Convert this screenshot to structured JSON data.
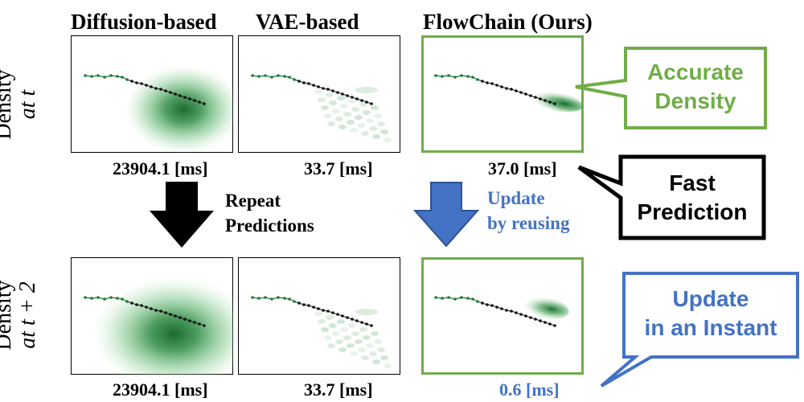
{
  "columns": {
    "diffusion": "Diffusion-based",
    "vae": "VAE-based",
    "flowchain": "FlowChain (Ours)"
  },
  "rows": {
    "top": {
      "line1": "Density",
      "line2": "at t"
    },
    "bottom": {
      "line1": "Density",
      "line2": "at t + 2"
    }
  },
  "timings": {
    "top": {
      "diffusion": "23904.1 [ms]",
      "vae": "33.7 [ms]",
      "flowchain": "37.0 [ms]"
    },
    "bottom": {
      "diffusion": "23904.1 [ms]",
      "vae": "33.7 [ms]",
      "flowchain": "0.6 [ms]"
    }
  },
  "arrows": {
    "black": {
      "line1": "Repeat",
      "line2": "Predictions"
    },
    "blue": {
      "line1": "Update",
      "line2": "by reusing"
    }
  },
  "callouts": {
    "accurate": {
      "line1": "Accurate",
      "line2": "Density"
    },
    "fast": {
      "line1": "Fast",
      "line2": "Prediction"
    },
    "instant": {
      "line1": "Update",
      "line2": "in an Instant"
    }
  },
  "colors": {
    "green_border": "#70ad47",
    "blue_accent": "#4472c4",
    "callout_green_text": "#70ad47",
    "callout_blue_text": "#4472c4",
    "density": "#1e7a35"
  }
}
